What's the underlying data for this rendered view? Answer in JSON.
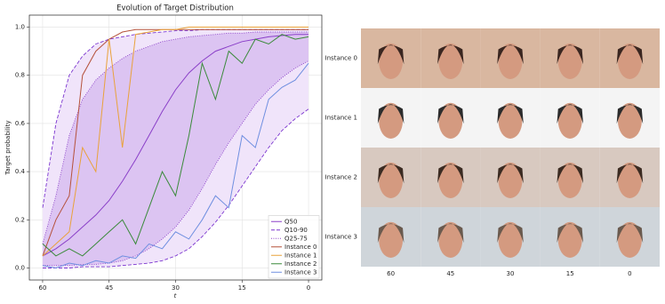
{
  "chart_data": {
    "type": "line",
    "title": "Evolution of Target Distribution",
    "xlabel": "t",
    "ylabel": "Target probability",
    "x": [
      60,
      57,
      54,
      51,
      48,
      45,
      42,
      39,
      36,
      33,
      30,
      27,
      24,
      21,
      18,
      15,
      12,
      9,
      6,
      3,
      0
    ],
    "xlim": [
      63,
      -3
    ],
    "xticks": [
      60,
      45,
      30,
      15,
      0
    ],
    "ylim": [
      -0.05,
      1.05
    ],
    "yticks": [
      {
        "value": 0,
        "label": "0.0"
      },
      0.2,
      0.4,
      0.6,
      0.8,
      {
        "value": 1,
        "label": "1.0"
      }
    ],
    "grid": true,
    "legend": "lower right",
    "series": [
      {
        "name": "Q50",
        "color": "#8a3fc8",
        "values": [
          0.05,
          0.08,
          0.12,
          0.17,
          0.22,
          0.28,
          0.36,
          0.45,
          0.55,
          0.65,
          0.74,
          0.81,
          0.86,
          0.9,
          0.92,
          0.94,
          0.95,
          0.96,
          0.965,
          0.97,
          0.97
        ]
      },
      {
        "name": "Q10-90",
        "color": "#7b35cf",
        "fill": "#f0e4fa",
        "dash": "dashed",
        "upper": [
          0.25,
          0.6,
          0.8,
          0.88,
          0.93,
          0.95,
          0.96,
          0.97,
          0.975,
          0.98,
          0.985,
          0.985,
          0.99,
          0.99,
          0.99,
          0.99,
          0.99,
          0.99,
          0.99,
          0.99,
          0.99
        ],
        "lower": [
          0,
          0,
          0,
          0.005,
          0.005,
          0.005,
          0.01,
          0.015,
          0.02,
          0.03,
          0.05,
          0.08,
          0.13,
          0.19,
          0.26,
          0.34,
          0.42,
          0.5,
          0.57,
          0.62,
          0.66
        ]
      },
      {
        "name": "Q25-75",
        "color": "#8a3fc8",
        "fill": "#dcc4f2",
        "dash": "dotted",
        "upper": [
          0.1,
          0.3,
          0.55,
          0.7,
          0.78,
          0.83,
          0.87,
          0.9,
          0.92,
          0.94,
          0.95,
          0.96,
          0.965,
          0.97,
          0.975,
          0.975,
          0.98,
          0.98,
          0.98,
          0.98,
          0.98
        ],
        "lower": [
          0.01,
          0.01,
          0.01,
          0.015,
          0.015,
          0.02,
          0.03,
          0.05,
          0.08,
          0.12,
          0.17,
          0.24,
          0.33,
          0.43,
          0.52,
          0.6,
          0.68,
          0.74,
          0.79,
          0.83,
          0.86
        ]
      },
      {
        "name": "Instance 0",
        "color": "#b5523b",
        "values": [
          0.05,
          0.2,
          0.3,
          0.8,
          0.9,
          0.95,
          0.98,
          0.99,
          0.99,
          0.99,
          0.99,
          0.99,
          0.99,
          0.99,
          0.99,
          0.99,
          0.99,
          0.99,
          0.99,
          0.99,
          0.99
        ]
      },
      {
        "name": "Instance 1",
        "color": "#e9a23b",
        "values": [
          0.05,
          0.1,
          0.15,
          0.5,
          0.4,
          0.95,
          0.5,
          0.97,
          0.98,
          0.99,
          0.99,
          1,
          1,
          1,
          1,
          1,
          1,
          1,
          1,
          1,
          1
        ]
      },
      {
        "name": "Instance 2",
        "color": "#3a8a3a",
        "values": [
          0.1,
          0.05,
          0.08,
          0.05,
          0.1,
          0.15,
          0.2,
          0.1,
          0.25,
          0.4,
          0.3,
          0.55,
          0.85,
          0.7,
          0.9,
          0.85,
          0.95,
          0.93,
          0.97,
          0.95,
          0.96
        ]
      },
      {
        "name": "Instance 3",
        "color": "#6f8fe0",
        "values": [
          0.01,
          0,
          0.02,
          0.01,
          0.03,
          0.02,
          0.05,
          0.04,
          0.1,
          0.08,
          0.15,
          0.12,
          0.2,
          0.3,
          0.25,
          0.55,
          0.5,
          0.7,
          0.75,
          0.78,
          0.85
        ]
      }
    ]
  },
  "image_grid": {
    "row_labels": [
      "Instance 0",
      "Instance 1",
      "Instance 2",
      "Instance 3"
    ],
    "col_labels": [
      "60",
      "45",
      "30",
      "15",
      "0"
    ]
  }
}
